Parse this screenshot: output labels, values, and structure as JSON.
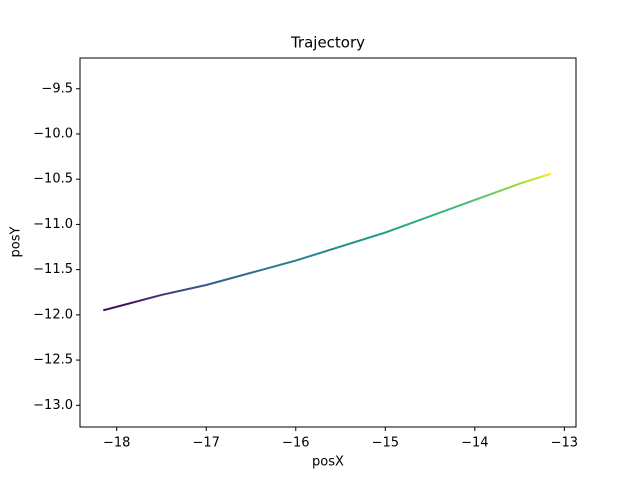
{
  "chart_data": {
    "type": "line",
    "title": "Trajectory",
    "x_label": "posX",
    "y_label": "posY",
    "x": [
      -18.15,
      -17.5,
      -17,
      -16,
      -15,
      -14,
      -13.5,
      -13.15
    ],
    "series": [
      {
        "values": [
          -11.95,
          -11.78,
          -11.67,
          -11.4,
          -11.09,
          -10.73,
          -10.55,
          -10.44
        ],
        "colors": [
          "#440154",
          "#46327e",
          "#365c8d",
          "#277f8e",
          "#1fa187",
          "#4ac16d",
          "#a0da39",
          "#fde725"
        ]
      }
    ],
    "xlim": [
      -18.41,
      -12.87
    ],
    "xticks": [
      {
        "value": -18,
        "label": "−18"
      },
      {
        "value": -17,
        "label": "−17"
      },
      {
        "value": -16,
        "label": "−16"
      },
      {
        "value": -15,
        "label": "−15"
      },
      {
        "value": -14,
        "label": "−14"
      },
      {
        "value": -13,
        "label": "−13"
      }
    ],
    "ylim": [
      -13.24,
      -9.16
    ],
    "yticks": [
      {
        "value": -9.5,
        "label": "−9.5"
      },
      {
        "value": -10,
        "label": "−10.0"
      },
      {
        "value": -10.5,
        "label": "−10.5"
      },
      {
        "value": -11,
        "label": "−11.0"
      },
      {
        "value": -11.5,
        "label": "−11.5"
      },
      {
        "value": -12,
        "label": "−12.0"
      },
      {
        "value": -12.5,
        "label": "−12.5"
      },
      {
        "value": -13,
        "label": "−13.0"
      }
    ],
    "grid": false
  }
}
